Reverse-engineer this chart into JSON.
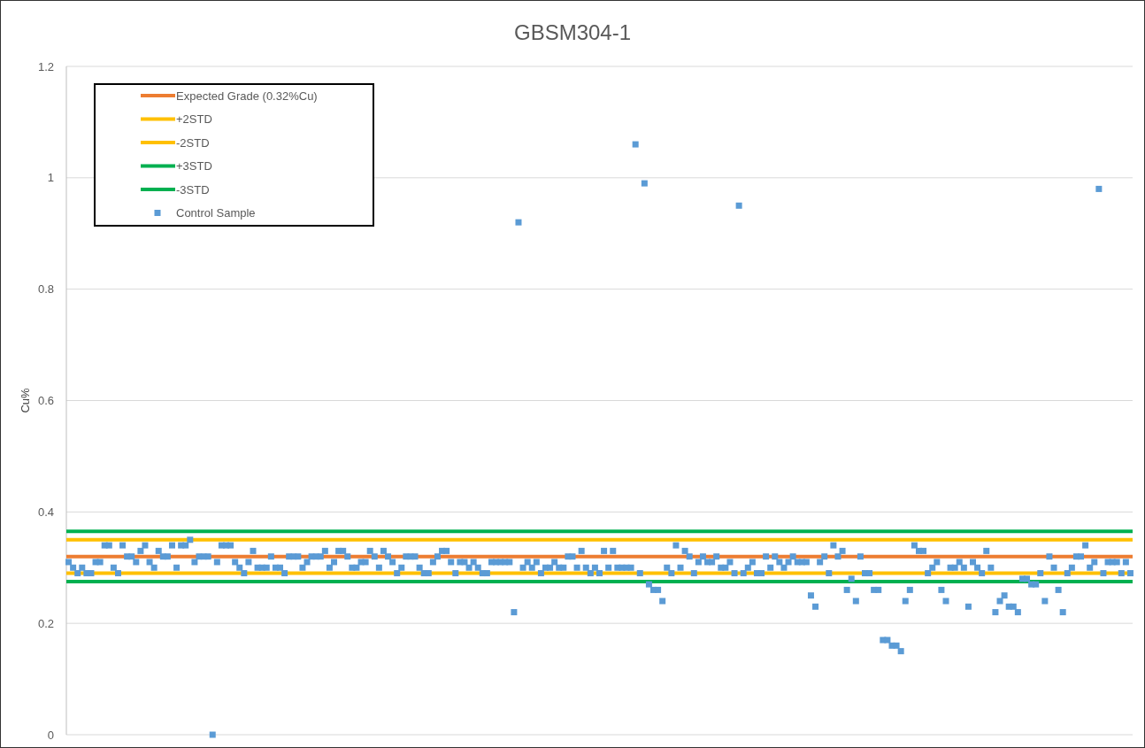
{
  "chart_data": {
    "type": "scatter",
    "title": "GBSM304-1",
    "ylabel": "Cu%",
    "ylim": [
      0,
      1.2
    ],
    "yticks": [
      0,
      0.2,
      0.4,
      0.6,
      0.8,
      1,
      1.2
    ],
    "grid": "y",
    "legend": "top left",
    "tick_labels": "y",
    "marker": "square",
    "ref_lines": [
      {
        "axis": "y",
        "value": 0.32,
        "label": "Expected Grade (0.32%Cu)",
        "color": "#ed7d31"
      },
      {
        "axis": "y",
        "value": 0.35,
        "label": "+2STD",
        "color": "#ffc000"
      },
      {
        "axis": "y",
        "value": 0.29,
        "label": "-2STD",
        "color": "#ffc000"
      },
      {
        "axis": "y",
        "value": 0.365,
        "label": "+3STD",
        "color": "#00b050"
      },
      {
        "axis": "y",
        "value": 0.275,
        "label": "-3STD",
        "color": "#00b050"
      }
    ],
    "categories": [
      null,
      null,
      null,
      null,
      null,
      null,
      null,
      null,
      null,
      null,
      null,
      null,
      null,
      null,
      null,
      null,
      null,
      null,
      null,
      null,
      null,
      null,
      null,
      null,
      null,
      null,
      null,
      null,
      null,
      null,
      null,
      null,
      null,
      null,
      null,
      null,
      null,
      null,
      null,
      null,
      null,
      null,
      null,
      null,
      null,
      null,
      null,
      null,
      null,
      null,
      null,
      null,
      null,
      null,
      null,
      null,
      null,
      null,
      null,
      null,
      null,
      null,
      null,
      null,
      null,
      null,
      null,
      null,
      null,
      null,
      null,
      null,
      null,
      null,
      null,
      null,
      null,
      null,
      null,
      null,
      null,
      null,
      null,
      null,
      null,
      null,
      null,
      null,
      null,
      null,
      null,
      null,
      null,
      null,
      null,
      null,
      null,
      null,
      null,
      null,
      null,
      null,
      null,
      null,
      null,
      null,
      null,
      null,
      null,
      null,
      null,
      null,
      null,
      null,
      null,
      null,
      null,
      null,
      null,
      null,
      null,
      null,
      null,
      null,
      null,
      null,
      null,
      null,
      null,
      null,
      null,
      null,
      null,
      null,
      null,
      null,
      null,
      null,
      null,
      null,
      null,
      null,
      null,
      null,
      null,
      null,
      null,
      null,
      null,
      null,
      null,
      null,
      null,
      null,
      null,
      null,
      null,
      null,
      null,
      null,
      null,
      null,
      null,
      null,
      null,
      null,
      null,
      null,
      null,
      null,
      null,
      null,
      null,
      null,
      null,
      null,
      null,
      null,
      null,
      null,
      null,
      null,
      null,
      null,
      null,
      null,
      null,
      null,
      null,
      null,
      null,
      null,
      null,
      null,
      null,
      null,
      null,
      null,
      null,
      null,
      null,
      null,
      null,
      null,
      null,
      null,
      null,
      null,
      null,
      null,
      null,
      null,
      null,
      null,
      null,
      null,
      null,
      null,
      null,
      null,
      null,
      null,
      null,
      null,
      null,
      null,
      null,
      null,
      null,
      null,
      null,
      null,
      null,
      null,
      null,
      null,
      null
    ],
    "series": [
      {
        "name": "Control Sample",
        "color": "#5b9bd5",
        "values": [
          0.31,
          0.3,
          0.29,
          0.3,
          0.29,
          0.29,
          0.31,
          0.31,
          0.34,
          0.34,
          0.3,
          0.29,
          0.34,
          0.32,
          0.32,
          0.31,
          0.33,
          0.34,
          0.31,
          0.3,
          0.33,
          0.32,
          0.32,
          0.34,
          0.3,
          0.34,
          0.34,
          0.35,
          0.31,
          0.32,
          0.32,
          0.32,
          0,
          0.31,
          0.34,
          0.34,
          0.34,
          0.31,
          0.3,
          0.29,
          0.31,
          0.33,
          0.3,
          0.3,
          0.3,
          0.32,
          0.3,
          0.3,
          0.29,
          0.32,
          0.32,
          0.32,
          0.3,
          0.31,
          0.32,
          0.32,
          0.32,
          0.33,
          0.3,
          0.31,
          0.33,
          0.33,
          0.32,
          0.3,
          0.3,
          0.31,
          0.31,
          0.33,
          0.32,
          0.3,
          0.33,
          0.32,
          0.31,
          0.29,
          0.3,
          0.32,
          0.32,
          0.32,
          0.3,
          0.29,
          0.29,
          0.31,
          0.32,
          0.33,
          0.33,
          0.31,
          0.29,
          0.31,
          0.31,
          0.3,
          0.31,
          0.3,
          0.29,
          0.29,
          0.31,
          0.31,
          0.31,
          0.31,
          0.31,
          0.22,
          0.92,
          0.3,
          0.31,
          0.3,
          0.31,
          0.29,
          0.3,
          0.3,
          0.31,
          0.3,
          0.3,
          0.32,
          0.32,
          0.3,
          0.33,
          0.3,
          0.29,
          0.3,
          0.29,
          0.33,
          0.3,
          0.33,
          0.3,
          0.3,
          0.3,
          0.3,
          1.06,
          0.29,
          0.99,
          0.27,
          0.26,
          0.26,
          0.24,
          0.3,
          0.29,
          0.34,
          0.3,
          0.33,
          0.32,
          0.29,
          0.31,
          0.32,
          0.31,
          0.31,
          0.32,
          0.3,
          0.3,
          0.31,
          0.29,
          0.95,
          0.29,
          0.3,
          0.31,
          0.29,
          0.29,
          0.32,
          0.3,
          0.32,
          0.31,
          0.3,
          0.31,
          0.32,
          0.31,
          0.31,
          0.31,
          0.25,
          0.23,
          0.31,
          0.32,
          0.29,
          0.34,
          0.32,
          0.33,
          0.26,
          0.28,
          0.24,
          0.32,
          0.29,
          0.29,
          0.26,
          0.26,
          0.17,
          0.17,
          0.16,
          0.16,
          0.15,
          0.24,
          0.26,
          0.34,
          0.33,
          0.33,
          0.29,
          0.3,
          0.31,
          0.26,
          0.24,
          0.3,
          0.3,
          0.31,
          0.3,
          0.23,
          0.31,
          0.3,
          0.29,
          0.33,
          0.3,
          0.22,
          0.24,
          0.25,
          0.23,
          0.23,
          0.22,
          0.28,
          0.28,
          0.27,
          0.27,
          0.29,
          0.24,
          0.32,
          0.3,
          0.26,
          0.22,
          0.29,
          0.3,
          0.32,
          0.32,
          0.34,
          0.3,
          0.31,
          0.98,
          0.29,
          0.31,
          0.31,
          0.31,
          0.29,
          0.31,
          0.29
        ]
      }
    ]
  }
}
